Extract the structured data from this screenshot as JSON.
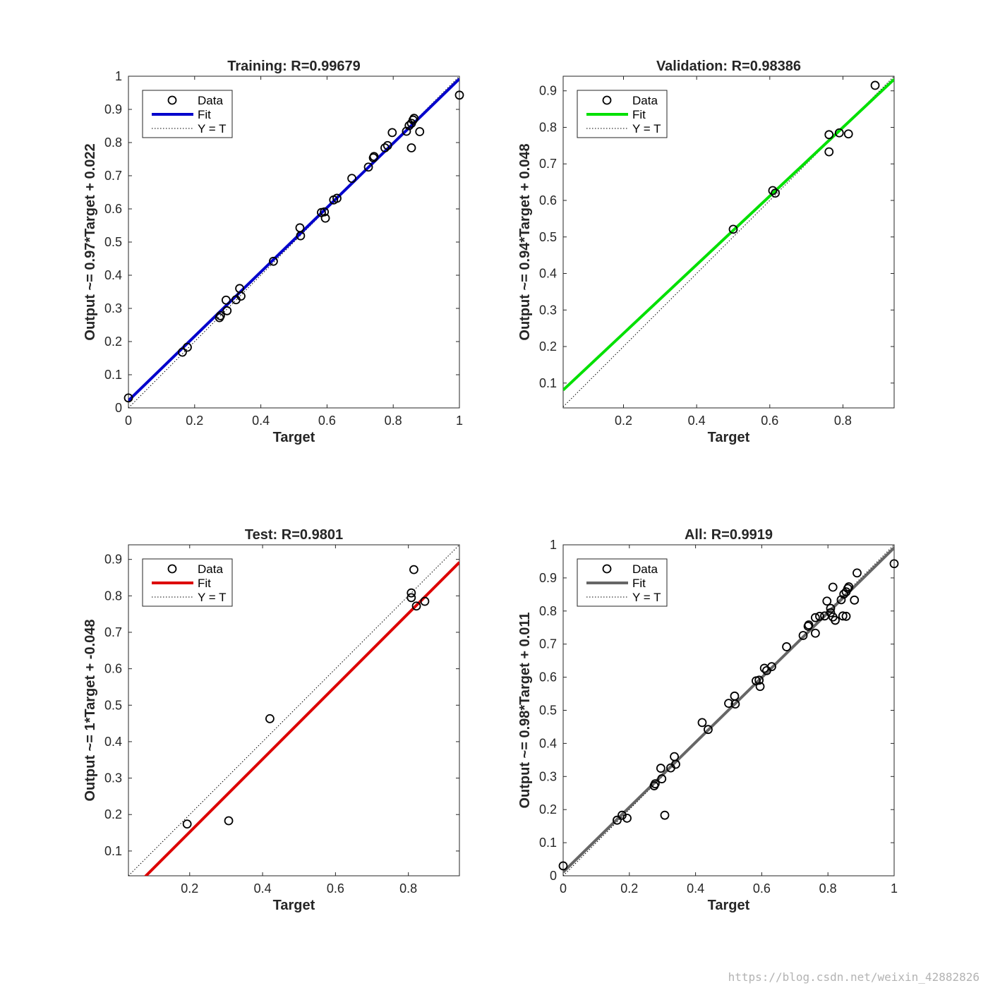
{
  "watermark": "https://blog.csdn.net/weixin_42882826",
  "chart_data": [
    {
      "type": "scatter",
      "title": "Training: R=0.99679",
      "xlabel": "Target",
      "ylabel": "Output ~= 0.97*Target + 0.022",
      "xlim": [
        0,
        1
      ],
      "ylim": [
        0,
        1
      ],
      "xticks": [
        0,
        0.2,
        0.4,
        0.6,
        0.8,
        1
      ],
      "yticks": [
        0,
        0.1,
        0.2,
        0.3,
        0.4,
        0.5,
        0.6,
        0.7,
        0.8,
        0.9,
        1
      ],
      "fit": {
        "slope": 0.97,
        "intercept": 0.022,
        "color": "#0000cc"
      },
      "legend": {
        "position": "top-left",
        "entries": [
          "Data",
          "Fit",
          "Y = T"
        ]
      },
      "grid": false,
      "points": [
        [
          0,
          0.03
        ],
        [
          0.163,
          0.168
        ],
        [
          0.178,
          0.183
        ],
        [
          0.275,
          0.272
        ],
        [
          0.278,
          0.278
        ],
        [
          0.295,
          0.325
        ],
        [
          0.298,
          0.293
        ],
        [
          0.325,
          0.326
        ],
        [
          0.336,
          0.36
        ],
        [
          0.34,
          0.337
        ],
        [
          0.438,
          0.442
        ],
        [
          0.518,
          0.543
        ],
        [
          0.52,
          0.519
        ],
        [
          0.583,
          0.589
        ],
        [
          0.592,
          0.591
        ],
        [
          0.595,
          0.572
        ],
        [
          0.62,
          0.627
        ],
        [
          0.63,
          0.632
        ],
        [
          0.675,
          0.692
        ],
        [
          0.725,
          0.726
        ],
        [
          0.74,
          0.754
        ],
        [
          0.742,
          0.758
        ],
        [
          0.775,
          0.784
        ],
        [
          0.783,
          0.791
        ],
        [
          0.797,
          0.83
        ],
        [
          0.84,
          0.834
        ],
        [
          0.848,
          0.851
        ],
        [
          0.855,
          0.858
        ],
        [
          0.86,
          0.868
        ],
        [
          0.863,
          0.873
        ],
        [
          0.855,
          0.784
        ],
        [
          0.88,
          0.833
        ],
        [
          1.0,
          0.943
        ]
      ]
    },
    {
      "type": "scatter",
      "title": "Validation: R=0.98386",
      "xlabel": "Target",
      "ylabel": "Output ~= 0.94*Target + 0.048",
      "xlim": [
        0.035,
        0.94
      ],
      "ylim": [
        0.032,
        0.94
      ],
      "xticks": [
        0.2,
        0.4,
        0.6,
        0.8
      ],
      "yticks": [
        0.1,
        0.2,
        0.3,
        0.4,
        0.5,
        0.6,
        0.7,
        0.8,
        0.9
      ],
      "fit": {
        "slope": 0.94,
        "intercept": 0.048,
        "color": "#00e000"
      },
      "legend": {
        "position": "top-left",
        "entries": [
          "Data",
          "Fit",
          "Y = T"
        ]
      },
      "grid": false,
      "points": [
        [
          0.5,
          0.521
        ],
        [
          0.608,
          0.627
        ],
        [
          0.615,
          0.62
        ],
        [
          0.762,
          0.78
        ],
        [
          0.762,
          0.733
        ],
        [
          0.79,
          0.785
        ],
        [
          0.815,
          0.782
        ],
        [
          0.888,
          0.915
        ]
      ]
    },
    {
      "type": "scatter",
      "title": "Test: R=0.9801",
      "xlabel": "Target",
      "ylabel": "Output ~= 1*Target + -0.048",
      "xlim": [
        0.032,
        0.94
      ],
      "ylim": [
        0.032,
        0.94
      ],
      "xticks": [
        0.2,
        0.4,
        0.6,
        0.8
      ],
      "yticks": [
        0.1,
        0.2,
        0.3,
        0.4,
        0.5,
        0.6,
        0.7,
        0.8,
        0.9
      ],
      "fit": {
        "slope": 1,
        "intercept": -0.048,
        "color": "#dd0000"
      },
      "legend": {
        "position": "top-left",
        "entries": [
          "Data",
          "Fit",
          "Y = T"
        ]
      },
      "grid": false,
      "points": [
        [
          0.193,
          0.174
        ],
        [
          0.307,
          0.183
        ],
        [
          0.42,
          0.463
        ],
        [
          0.808,
          0.808
        ],
        [
          0.808,
          0.795
        ],
        [
          0.815,
          0.872
        ],
        [
          0.822,
          0.772
        ],
        [
          0.845,
          0.785
        ]
      ]
    },
    {
      "type": "scatter",
      "title": "All: R=0.9919",
      "xlabel": "Target",
      "ylabel": "Output ~= 0.98*Target + 0.011",
      "xlim": [
        0,
        1
      ],
      "ylim": [
        0,
        1
      ],
      "xticks": [
        0,
        0.2,
        0.4,
        0.6,
        0.8,
        1
      ],
      "yticks": [
        0,
        0.1,
        0.2,
        0.3,
        0.4,
        0.5,
        0.6,
        0.7,
        0.8,
        0.9,
        1
      ],
      "fit": {
        "slope": 0.98,
        "intercept": 0.011,
        "color": "#666666"
      },
      "legend": {
        "position": "top-left",
        "entries": [
          "Data",
          "Fit",
          "Y = T"
        ]
      },
      "grid": false,
      "points": [
        [
          0,
          0.03
        ],
        [
          0.163,
          0.168
        ],
        [
          0.178,
          0.183
        ],
        [
          0.193,
          0.174
        ],
        [
          0.275,
          0.272
        ],
        [
          0.278,
          0.278
        ],
        [
          0.295,
          0.325
        ],
        [
          0.298,
          0.293
        ],
        [
          0.307,
          0.183
        ],
        [
          0.325,
          0.326
        ],
        [
          0.336,
          0.36
        ],
        [
          0.34,
          0.337
        ],
        [
          0.42,
          0.463
        ],
        [
          0.438,
          0.442
        ],
        [
          0.5,
          0.521
        ],
        [
          0.518,
          0.543
        ],
        [
          0.52,
          0.519
        ],
        [
          0.583,
          0.589
        ],
        [
          0.592,
          0.591
        ],
        [
          0.595,
          0.572
        ],
        [
          0.608,
          0.627
        ],
        [
          0.615,
          0.62
        ],
        [
          0.63,
          0.632
        ],
        [
          0.675,
          0.692
        ],
        [
          0.725,
          0.726
        ],
        [
          0.74,
          0.754
        ],
        [
          0.742,
          0.758
        ],
        [
          0.762,
          0.78
        ],
        [
          0.762,
          0.733
        ],
        [
          0.775,
          0.784
        ],
        [
          0.79,
          0.785
        ],
        [
          0.797,
          0.83
        ],
        [
          0.808,
          0.808
        ],
        [
          0.808,
          0.795
        ],
        [
          0.815,
          0.872
        ],
        [
          0.815,
          0.782
        ],
        [
          0.822,
          0.772
        ],
        [
          0.84,
          0.834
        ],
        [
          0.845,
          0.785
        ],
        [
          0.855,
          0.784
        ],
        [
          0.848,
          0.851
        ],
        [
          0.855,
          0.858
        ],
        [
          0.86,
          0.868
        ],
        [
          0.863,
          0.873
        ],
        [
          0.88,
          0.833
        ],
        [
          0.888,
          0.915
        ],
        [
          1.0,
          0.943
        ]
      ]
    }
  ]
}
